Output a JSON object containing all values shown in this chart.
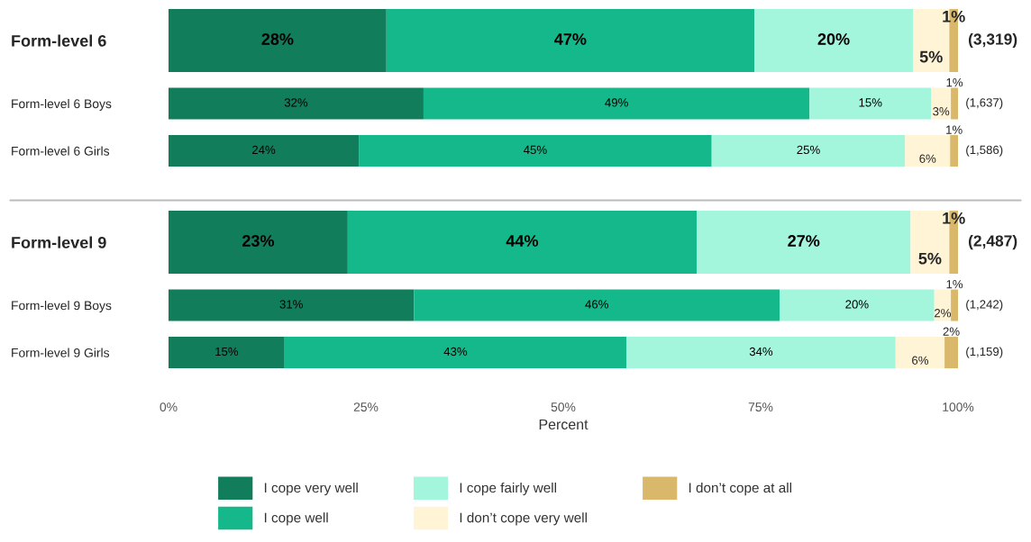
{
  "chart_data": {
    "type": "bar",
    "orientation": "horizontal",
    "stacked": true,
    "xlabel": "Percent",
    "categories": [
      "Form-level 6",
      "Form-level 6 Boys",
      "Form-level 6 Girls",
      "Form-level 9",
      "Form-level 9 Boys",
      "Form-level 9 Girls"
    ],
    "xlim": [
      0,
      100
    ],
    "xticks": [
      {
        "value": 0,
        "label": "0%"
      },
      {
        "value": 25,
        "label": "25%"
      },
      {
        "value": 50,
        "label": "50%"
      },
      {
        "value": 75,
        "label": "75%"
      },
      {
        "value": 100,
        "label": "100%"
      }
    ],
    "grid": false,
    "legend": "bottom",
    "series": [
      {
        "name": "I cope very well",
        "color": "#127d5b",
        "values": [
          27.6,
          32.3,
          24.1,
          22.7,
          31.1,
          14.7
        ],
        "value_labels": [
          "28%",
          "32%",
          "24%",
          "23%",
          "31%",
          "15%"
        ]
      },
      {
        "name": "I cope well",
        "color": "#14b88a",
        "values": [
          46.6,
          48.9,
          44.7,
          44.2,
          46.3,
          43.3
        ],
        "value_labels": [
          "47%",
          "49%",
          "45%",
          "44%",
          "46%",
          "43%"
        ]
      },
      {
        "name": "I cope fairly well",
        "color": "#a3f5dc",
        "values": [
          20.1,
          15.4,
          24.5,
          27.1,
          19.6,
          34.1
        ],
        "value_labels": [
          "20%",
          "15%",
          "25%",
          "27%",
          "20%",
          "34%"
        ]
      },
      {
        "name": "I don’t cope very well",
        "color": "#fff4d6",
        "values": [
          4.6,
          2.5,
          5.7,
          4.9,
          2.1,
          6.2
        ],
        "value_labels": [
          "5%",
          "3%",
          "6%",
          "5%",
          "2%",
          "6%"
        ]
      },
      {
        "name": "I don’t cope at all",
        "color": "#d9b86b",
        "values": [
          1.1,
          0.9,
          1.0,
          1.1,
          0.9,
          1.7
        ],
        "value_labels": [
          "1%",
          "1%",
          "1%",
          "1%",
          "1%",
          "2%"
        ]
      }
    ],
    "annotations": [
      "(3,319)",
      "(1,637)",
      "(1,586)",
      "(2,487)",
      "(1,242)",
      "(1,159)"
    ]
  }
}
